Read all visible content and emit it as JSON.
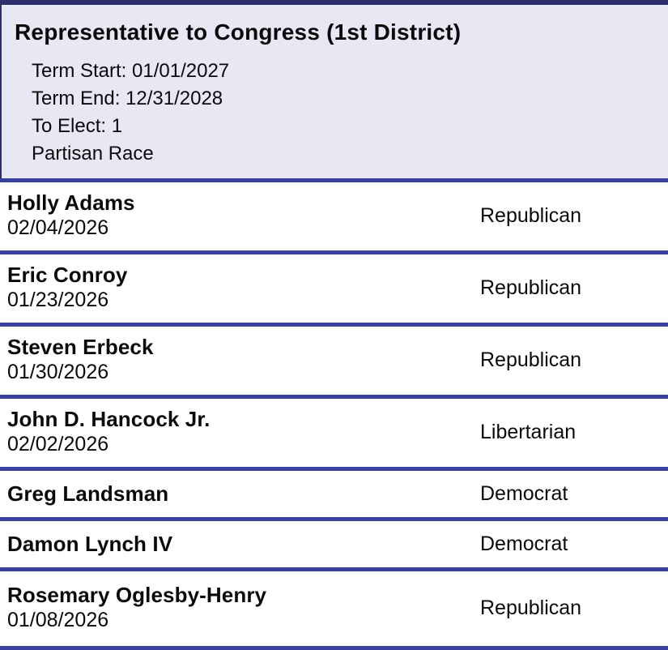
{
  "contest": {
    "title": "Representative to Congress (1st District)",
    "details": [
      "Term Start: 01/01/2027",
      "Term End: 12/31/2028",
      "To Elect: 1",
      "Partisan Race"
    ]
  },
  "candidates": [
    {
      "name": "Holly Adams",
      "filing_date": "02/04/2026",
      "party": "Republican"
    },
    {
      "name": "Eric Conroy",
      "filing_date": "01/23/2026",
      "party": "Republican"
    },
    {
      "name": "Steven Erbeck",
      "filing_date": "01/30/2026",
      "party": "Republican"
    },
    {
      "name": "John D. Hancock Jr.",
      "filing_date": "02/02/2026",
      "party": "Libertarian"
    },
    {
      "name": "Greg Landsman",
      "filing_date": "",
      "party": "Democrat"
    },
    {
      "name": "Damon Lynch IV",
      "filing_date": "",
      "party": "Democrat"
    },
    {
      "name": "Rosemary Oglesby-Henry",
      "filing_date": "01/08/2026",
      "party": "Republican"
    }
  ],
  "colors": {
    "accent_border": "#2e2f6a",
    "row_divider": "#3b419e",
    "header_bg": "#e7e8f4",
    "text": "#0a0a0a"
  }
}
